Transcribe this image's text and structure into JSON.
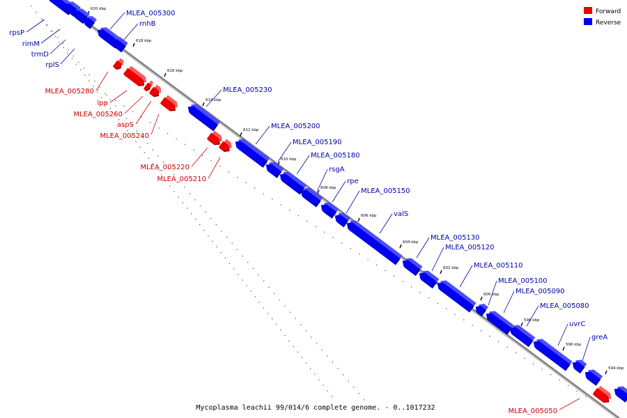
{
  "caption": "Mycoplasma leachii 99/014/6 complete genome. - 0..1017232",
  "colors": {
    "forward": "#ee0000",
    "forward_top": "#ff5a5a",
    "forward_side": "#a80000",
    "reverse": "#0000ee",
    "reverse_top": "#4c4cff",
    "reverse_side": "#00009c",
    "forward_label": "#cc0000",
    "reverse_label": "#0000aa",
    "axis": "#777777"
  },
  "legend": [
    {
      "label": "Forward",
      "strand": "forward"
    },
    {
      "label": "Reverse",
      "strand": "reverse"
    }
  ],
  "ticks": [
    "620 kbp",
    "618 kbp",
    "616 kbp",
    "614 kbp",
    "612 kbp",
    "610 kbp",
    "608 kbp",
    "606 kbp",
    "604 kbp",
    "602 kbp",
    "600 kbp",
    "598 kbp",
    "596 kbp",
    "594 kbp"
  ],
  "labels": [
    {
      "text": "MLEA_005300",
      "strand": "reverse"
    },
    {
      "text": "rnhB",
      "strand": "reverse"
    },
    {
      "text": "rpsP",
      "strand": "reverse"
    },
    {
      "text": "rimM",
      "strand": "reverse"
    },
    {
      "text": "trmD",
      "strand": "reverse"
    },
    {
      "text": "rplS",
      "strand": "reverse"
    },
    {
      "text": "MLEA_005280",
      "strand": "forward"
    },
    {
      "text": "lpp",
      "strand": "forward"
    },
    {
      "text": "MLEA_005260",
      "strand": "forward"
    },
    {
      "text": "aspS",
      "strand": "forward"
    },
    {
      "text": "MLEA_005240",
      "strand": "forward"
    },
    {
      "text": "MLEA_005230",
      "strand": "reverse"
    },
    {
      "text": "MLEA_005220",
      "strand": "forward"
    },
    {
      "text": "MLEA_005210",
      "strand": "forward"
    },
    {
      "text": "MLEA_005200",
      "strand": "reverse"
    },
    {
      "text": "MLEA_005190",
      "strand": "reverse"
    },
    {
      "text": "MLEA_005180",
      "strand": "reverse"
    },
    {
      "text": "rsgA",
      "strand": "reverse"
    },
    {
      "text": "rpe",
      "strand": "reverse"
    },
    {
      "text": "MLEA_005150",
      "strand": "reverse"
    },
    {
      "text": "valS",
      "strand": "reverse"
    },
    {
      "text": "MLEA_005130",
      "strand": "reverse"
    },
    {
      "text": "MLEA_005120",
      "strand": "reverse"
    },
    {
      "text": "MLEA_005110",
      "strand": "reverse"
    },
    {
      "text": "MLEA_005100",
      "strand": "reverse"
    },
    {
      "text": "MLEA_005090",
      "strand": "reverse"
    },
    {
      "text": "MLEA_005080",
      "strand": "reverse"
    },
    {
      "text": "uvrC",
      "strand": "reverse"
    },
    {
      "text": "greA",
      "strand": "reverse"
    },
    {
      "text": "MLEA_005050",
      "strand": "forward"
    }
  ]
}
